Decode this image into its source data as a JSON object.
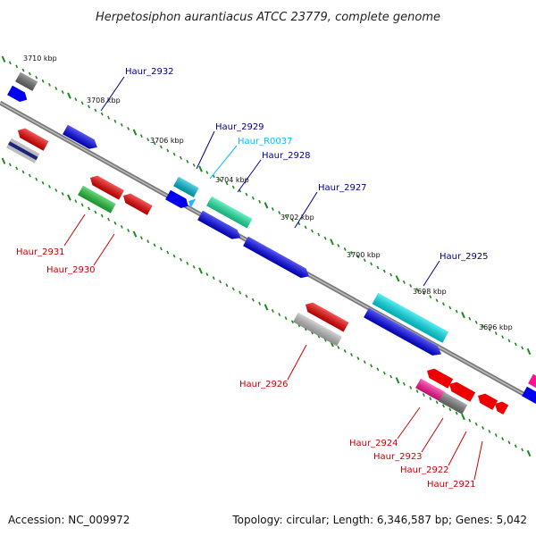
{
  "title": "Herpetosiphon aurantiacus ATCC 23779, complete genome",
  "accession_text": "Accession: NC_009972",
  "summary_text": "Topology: circular; Length: 6,346,587 bp; Genes: 5,042",
  "ticks": [
    {
      "label": "3710 kbp"
    },
    {
      "label": "3708 kbp"
    },
    {
      "label": "3706 kbp"
    },
    {
      "label": "3704 kbp"
    },
    {
      "label": "3702 kbp"
    },
    {
      "label": "3700 kbp"
    },
    {
      "label": "3698 kbp"
    },
    {
      "label": "3696 kbp"
    }
  ],
  "genes_top": [
    {
      "name": "Haur_2932",
      "color": "#00008b"
    },
    {
      "name": "Haur_2929",
      "color": "#00008b"
    },
    {
      "name": "Haur_R0037",
      "color": "#00bfff"
    },
    {
      "name": "Haur_2928",
      "color": "#00008b"
    },
    {
      "name": "Haur_2927",
      "color": "#00008b"
    },
    {
      "name": "Haur_2925",
      "color": "#00008b"
    }
  ],
  "genes_bottom": [
    {
      "name": "Haur_2931",
      "color": "#cc0000"
    },
    {
      "name": "Haur_2930",
      "color": "#cc0000"
    },
    {
      "name": "Haur_2926",
      "color": "#cc0000"
    },
    {
      "name": "Haur_2924",
      "color": "#cc0000"
    },
    {
      "name": "Haur_2923",
      "color": "#cc0000"
    },
    {
      "name": "Haur_2922",
      "color": "#cc0000"
    },
    {
      "name": "Haur_2921",
      "color": "#cc0000"
    }
  ]
}
